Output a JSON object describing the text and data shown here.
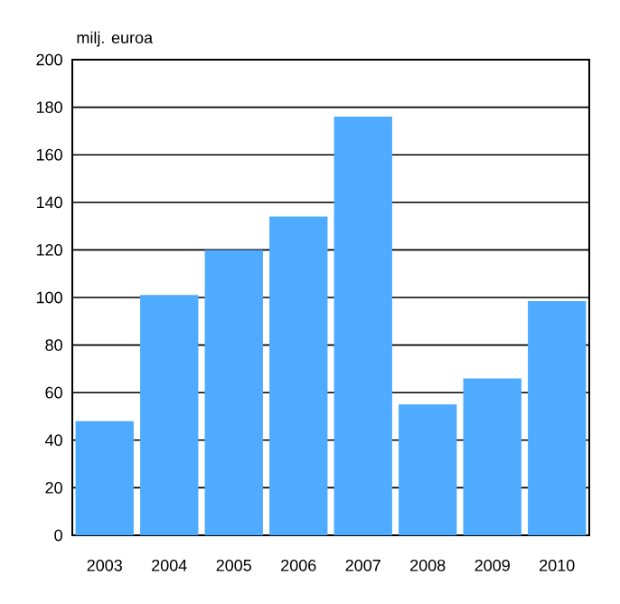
{
  "chart_data": {
    "type": "bar",
    "ylabel": "milj. euroa",
    "categories": [
      "2003",
      "2004",
      "2005",
      "2006",
      "2007",
      "2008",
      "2009",
      "2010"
    ],
    "values": [
      48,
      101,
      120,
      134,
      176,
      55,
      66,
      98.5
    ],
    "color": "#4fabff",
    "ylim": [
      0,
      200
    ],
    "yticks": [
      0,
      20,
      40,
      60,
      80,
      100,
      120,
      140,
      160,
      180,
      200
    ],
    "grid": "y"
  }
}
